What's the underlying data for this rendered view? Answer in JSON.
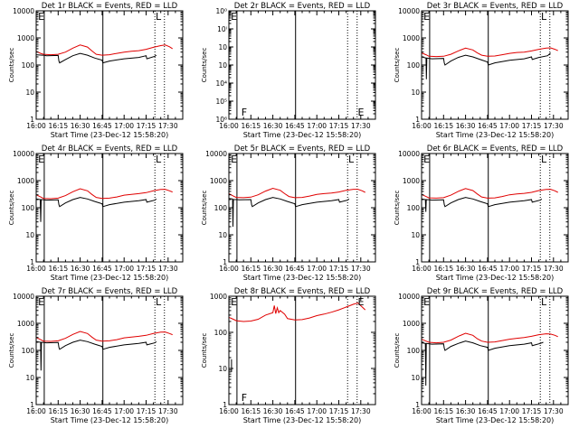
{
  "common": {
    "xlabel": "Start Time (23-Dec-12 15:58:20)",
    "ylabel": "Counts/sec",
    "x_tick_labels": [
      "16:00",
      "16:15",
      "16:30",
      "16:45",
      "17:00",
      "17:15",
      "17:30"
    ],
    "x_ticks_min": [
      0,
      15,
      30,
      45,
      60,
      75,
      90
    ],
    "xlim_min": [
      0,
      100
    ],
    "colors": {
      "events": "#000000",
      "lld": "#e00000",
      "frame": "#000000",
      "background": "#ffffff"
    }
  },
  "chart_data": [
    {
      "title": "Det 1r BLACK = Events, RED = LLD",
      "type": "line",
      "y_scale": "log",
      "ylim": [
        1,
        10000
      ],
      "y_tick_labels": [
        "1",
        "10",
        "100",
        "1000",
        "10000"
      ],
      "markers": [
        {
          "label": "E",
          "x": 1.3
        },
        {
          "label": "L",
          "x": 81.5
        }
      ],
      "vlines_solid": [
        5.5,
        45.5
      ],
      "vlines_dotted": [
        81,
        87.5
      ],
      "series": [
        {
          "name": "LLD",
          "color": "#e00000",
          "x": [
            0,
            3,
            5,
            10,
            15,
            20,
            25,
            30,
            35,
            38,
            41,
            45,
            50,
            55,
            60,
            65,
            70,
            75,
            80,
            85,
            88,
            91,
            93
          ],
          "y": [
            320,
            270,
            250,
            240,
            250,
            300,
            420,
            550,
            460,
            330,
            250,
            230,
            240,
            270,
            300,
            320,
            340,
            380,
            450,
            520,
            550,
            470,
            400
          ]
        },
        {
          "name": "Events",
          "color": "#000000",
          "x": [
            0,
            4,
            5.5,
            7,
            15,
            15.5,
            16,
            20,
            25,
            30,
            35,
            40,
            45,
            45.5,
            50,
            60,
            70,
            75,
            75.5,
            81,
            82
          ],
          "y": [
            240,
            230,
            230,
            220,
            225,
            140,
            120,
            160,
            220,
            270,
            230,
            180,
            150,
            120,
            140,
            170,
            190,
            220,
            170,
            210,
            230
          ]
        }
      ]
    },
    {
      "title": "Det 2r BLACK = Events, RED = LLD",
      "type": "line",
      "y_scale": "log",
      "ylim": [
        1e-06,
        1.0
      ],
      "y_tick_labels": [
        "10⁶",
        "10⁵",
        "10⁴",
        "10⁳",
        "10⁲",
        "10ⁱ",
        "10⁰"
      ],
      "markers": [
        {
          "label": "E",
          "x": 1.3
        },
        {
          "label": "F",
          "x": 8.5
        },
        {
          "label": "E",
          "x": 88
        }
      ],
      "vlines_solid": [
        5.5,
        45.5
      ],
      "vlines_dotted": [
        81,
        87.5
      ],
      "series": []
    },
    {
      "title": "Det 3r BLACK = Events, RED = LLD",
      "type": "line",
      "y_scale": "log",
      "ylim": [
        1,
        10000
      ],
      "y_tick_labels": [
        "1",
        "10",
        "100",
        "1000",
        "10000"
      ],
      "markers": [
        {
          "label": "E",
          "x": 1.3
        },
        {
          "label": "L",
          "x": 81.5
        }
      ],
      "vlines_solid": [
        5.5,
        45.5
      ],
      "vlines_dotted": [
        81,
        87.5
      ],
      "series": [
        {
          "name": "LLD",
          "color": "#e00000",
          "x": [
            0,
            3,
            5,
            10,
            15,
            20,
            25,
            30,
            35,
            38,
            41,
            45,
            50,
            55,
            60,
            65,
            70,
            75,
            80,
            85,
            88,
            91,
            93
          ],
          "y": [
            280,
            240,
            210,
            205,
            210,
            250,
            330,
            420,
            360,
            280,
            230,
            210,
            215,
            240,
            270,
            290,
            300,
            330,
            380,
            420,
            430,
            380,
            340
          ]
        },
        {
          "name": "Events",
          "color": "#000000",
          "x": [
            0,
            3,
            3.3,
            3.6,
            5.5,
            7,
            15,
            15.5,
            16,
            20,
            25,
            30,
            35,
            40,
            45,
            45.5,
            50,
            60,
            70,
            75,
            75.5,
            80,
            86,
            88
          ],
          "y": [
            200,
            180,
            30,
            180,
            175,
            170,
            175,
            120,
            100,
            140,
            190,
            230,
            200,
            160,
            130,
            100,
            120,
            150,
            170,
            200,
            160,
            190,
            220,
            280
          ]
        }
      ]
    },
    {
      "title": "Det 4r BLACK = Events, RED = LLD",
      "type": "line",
      "y_scale": "log",
      "ylim": [
        1,
        10000
      ],
      "y_tick_labels": [
        "1",
        "10",
        "100",
        "1000",
        "10000"
      ],
      "markers": [
        {
          "label": "E",
          "x": 1.3
        },
        {
          "label": "L",
          "x": 81.5
        }
      ],
      "vlines_solid": [
        5.5,
        45.5
      ],
      "vlines_dotted": [
        81,
        87.5
      ],
      "series": [
        {
          "name": "LLD",
          "color": "#e00000",
          "x": [
            0,
            3,
            5,
            10,
            15,
            20,
            25,
            30,
            35,
            38,
            41,
            45,
            50,
            55,
            60,
            65,
            70,
            75,
            80,
            85,
            88,
            91,
            93
          ],
          "y": [
            300,
            250,
            220,
            215,
            225,
            280,
            390,
            500,
            420,
            310,
            240,
            220,
            225,
            250,
            290,
            310,
            330,
            360,
            420,
            470,
            480,
            420,
            380
          ]
        },
        {
          "name": "Events",
          "color": "#000000",
          "x": [
            0,
            2.8,
            3.1,
            3.4,
            5.5,
            7,
            15,
            15.5,
            16,
            20,
            25,
            30,
            35,
            40,
            45,
            45.5,
            50,
            60,
            70,
            75,
            75.5,
            81,
            82
          ],
          "y": [
            210,
            200,
            30,
            200,
            195,
            190,
            195,
            130,
            110,
            150,
            200,
            240,
            210,
            170,
            140,
            110,
            130,
            160,
            180,
            200,
            160,
            190,
            210
          ]
        }
      ]
    },
    {
      "title": "Det 5r BLACK = Events, RED = LLD",
      "type": "line",
      "y_scale": "log",
      "ylim": [
        1,
        10000
      ],
      "y_tick_labels": [
        "1",
        "10",
        "100",
        "1000",
        "10000"
      ],
      "markers": [
        {
          "label": "E",
          "x": 1.3
        },
        {
          "label": "L",
          "x": 81.5
        }
      ],
      "vlines_solid": [
        5.5,
        45.5
      ],
      "vlines_dotted": [
        81,
        87.5
      ],
      "series": [
        {
          "name": "LLD",
          "color": "#e00000",
          "x": [
            0,
            3,
            5,
            10,
            15,
            20,
            25,
            30,
            35,
            38,
            41,
            45,
            50,
            55,
            60,
            65,
            70,
            75,
            80,
            85,
            88,
            91,
            93
          ],
          "y": [
            330,
            270,
            240,
            235,
            245,
            300,
            410,
            520,
            440,
            330,
            260,
            235,
            240,
            270,
            310,
            330,
            350,
            380,
            440,
            480,
            480,
            420,
            370
          ]
        },
        {
          "name": "Events",
          "color": "#000000",
          "x": [
            0,
            2.5,
            2.8,
            3.1,
            5.5,
            7,
            15,
            15.5,
            16,
            20,
            25,
            30,
            35,
            40,
            45,
            45.5,
            50,
            60,
            70,
            75,
            75.5,
            81,
            82
          ],
          "y": [
            220,
            210,
            20,
            200,
            200,
            195,
            200,
            130,
            110,
            150,
            200,
            240,
            210,
            170,
            140,
            110,
            130,
            160,
            180,
            200,
            160,
            190,
            210
          ]
        }
      ]
    },
    {
      "title": "Det 6r BLACK = Events, RED = LLD",
      "type": "line",
      "y_scale": "log",
      "ylim": [
        1,
        10000
      ],
      "y_tick_labels": [
        "1",
        "10",
        "100",
        "1000",
        "10000"
      ],
      "markers": [
        {
          "label": "E",
          "x": 1.3
        },
        {
          "label": "L",
          "x": 81.5
        }
      ],
      "vlines_solid": [
        5.5,
        45.5
      ],
      "vlines_dotted": [
        81,
        87.5
      ],
      "series": [
        {
          "name": "LLD",
          "color": "#e00000",
          "x": [
            0,
            3,
            5,
            10,
            15,
            20,
            25,
            30,
            35,
            38,
            41,
            45,
            50,
            55,
            60,
            65,
            70,
            75,
            80,
            85,
            88,
            91,
            93
          ],
          "y": [
            310,
            260,
            230,
            225,
            235,
            290,
            400,
            510,
            430,
            320,
            250,
            225,
            230,
            260,
            300,
            320,
            340,
            370,
            430,
            470,
            480,
            420,
            370
          ]
        },
        {
          "name": "Events",
          "color": "#000000",
          "x": [
            0,
            2.6,
            2.9,
            3.2,
            5.5,
            7,
            15,
            15.5,
            16,
            20,
            25,
            30,
            35,
            40,
            45,
            45.5,
            50,
            60,
            70,
            75,
            75.5,
            81,
            82
          ],
          "y": [
            210,
            200,
            70,
            200,
            195,
            190,
            195,
            130,
            110,
            150,
            200,
            240,
            210,
            170,
            140,
            110,
            130,
            160,
            180,
            200,
            160,
            190,
            210
          ]
        }
      ]
    },
    {
      "title": "Det 7r BLACK = Events, RED = LLD",
      "type": "line",
      "y_scale": "log",
      "ylim": [
        1,
        10000
      ],
      "y_tick_labels": [
        "1",
        "10",
        "100",
        "1000",
        "10000"
      ],
      "markers": [
        {
          "label": "E",
          "x": 1.3
        },
        {
          "label": "L",
          "x": 81.5
        }
      ],
      "vlines_solid": [
        5.5,
        45.5
      ],
      "vlines_dotted": [
        81,
        87.5
      ],
      "series": [
        {
          "name": "LLD",
          "color": "#e00000",
          "x": [
            0,
            3,
            5,
            10,
            15,
            20,
            25,
            30,
            35,
            38,
            41,
            45,
            50,
            55,
            60,
            65,
            70,
            75,
            80,
            85,
            88,
            91,
            93
          ],
          "y": [
            300,
            250,
            220,
            215,
            225,
            280,
            390,
            500,
            420,
            310,
            240,
            220,
            225,
            250,
            290,
            310,
            330,
            360,
            420,
            470,
            480,
            420,
            380
          ]
        },
        {
          "name": "Events",
          "color": "#000000",
          "x": [
            0,
            3,
            3.3,
            3.6,
            5.5,
            7,
            15,
            15.5,
            16,
            20,
            25,
            30,
            35,
            40,
            45,
            45.5,
            50,
            60,
            70,
            75,
            75.5,
            81,
            82
          ],
          "y": [
            210,
            200,
            18,
            200,
            195,
            190,
            195,
            130,
            110,
            150,
            200,
            240,
            210,
            170,
            140,
            110,
            130,
            160,
            180,
            200,
            160,
            190,
            210
          ]
        }
      ]
    },
    {
      "title": "Det 8r BLACK = Events, RED = LLD",
      "type": "line",
      "y_scale": "log",
      "ylim": [
        1,
        1000
      ],
      "y_tick_labels": [
        "1",
        "10",
        "100",
        "1000"
      ],
      "markers": [
        {
          "label": "E",
          "x": 1.3
        },
        {
          "label": "F",
          "x": 8.5
        },
        {
          "label": "E",
          "x": 88
        }
      ],
      "vlines_solid": [
        5.5,
        45.5
      ],
      "vlines_dotted": [
        81,
        87.5
      ],
      "series": [
        {
          "name": "LLD",
          "color": "#e00000",
          "x": [
            0,
            3,
            5,
            10,
            15,
            20,
            25,
            30,
            31,
            32,
            33,
            34,
            35,
            38,
            40,
            45,
            50,
            55,
            60,
            65,
            70,
            75,
            80,
            85,
            88,
            91,
            93
          ],
          "y": [
            260,
            230,
            210,
            200,
            205,
            230,
            300,
            350,
            550,
            330,
            480,
            350,
            400,
            320,
            240,
            220,
            225,
            250,
            290,
            320,
            360,
            420,
            500,
            600,
            650,
            500,
            420
          ]
        },
        {
          "name": "Events",
          "color": "#000000",
          "x": [
            1.8,
            1.8
          ],
          "y": [
            8,
            18
          ]
        }
      ]
    },
    {
      "title": "Det 9r BLACK = Events, RED = LLD",
      "type": "line",
      "y_scale": "log",
      "ylim": [
        1,
        10000
      ],
      "y_tick_labels": [
        "1",
        "10",
        "100",
        "1000",
        "10000"
      ],
      "markers": [
        {
          "label": "E",
          "x": 1.3
        },
        {
          "label": "L",
          "x": 81.5
        }
      ],
      "vlines_solid": [
        5.5,
        45.5
      ],
      "vlines_dotted": [
        81,
        87.5
      ],
      "series": [
        {
          "name": "LLD",
          "color": "#e00000",
          "x": [
            0,
            3,
            5,
            10,
            15,
            20,
            25,
            30,
            35,
            38,
            41,
            45,
            50,
            55,
            60,
            65,
            70,
            75,
            80,
            85,
            88,
            91,
            93
          ],
          "y": [
            260,
            220,
            200,
            190,
            200,
            240,
            330,
            430,
            360,
            270,
            220,
            200,
            205,
            230,
            260,
            280,
            300,
            330,
            380,
            410,
            400,
            360,
            320
          ]
        },
        {
          "name": "Events",
          "color": "#000000",
          "x": [
            0,
            2.6,
            2.9,
            3.2,
            5.5,
            7,
            15,
            15.5,
            16,
            20,
            25,
            30,
            35,
            40,
            45,
            45.5,
            50,
            60,
            70,
            75,
            75.5,
            81,
            83
          ],
          "y": [
            190,
            180,
            5,
            180,
            175,
            170,
            175,
            120,
            100,
            140,
            180,
            220,
            190,
            150,
            130,
            100,
            120,
            150,
            170,
            190,
            150,
            180,
            200
          ]
        }
      ]
    }
  ]
}
